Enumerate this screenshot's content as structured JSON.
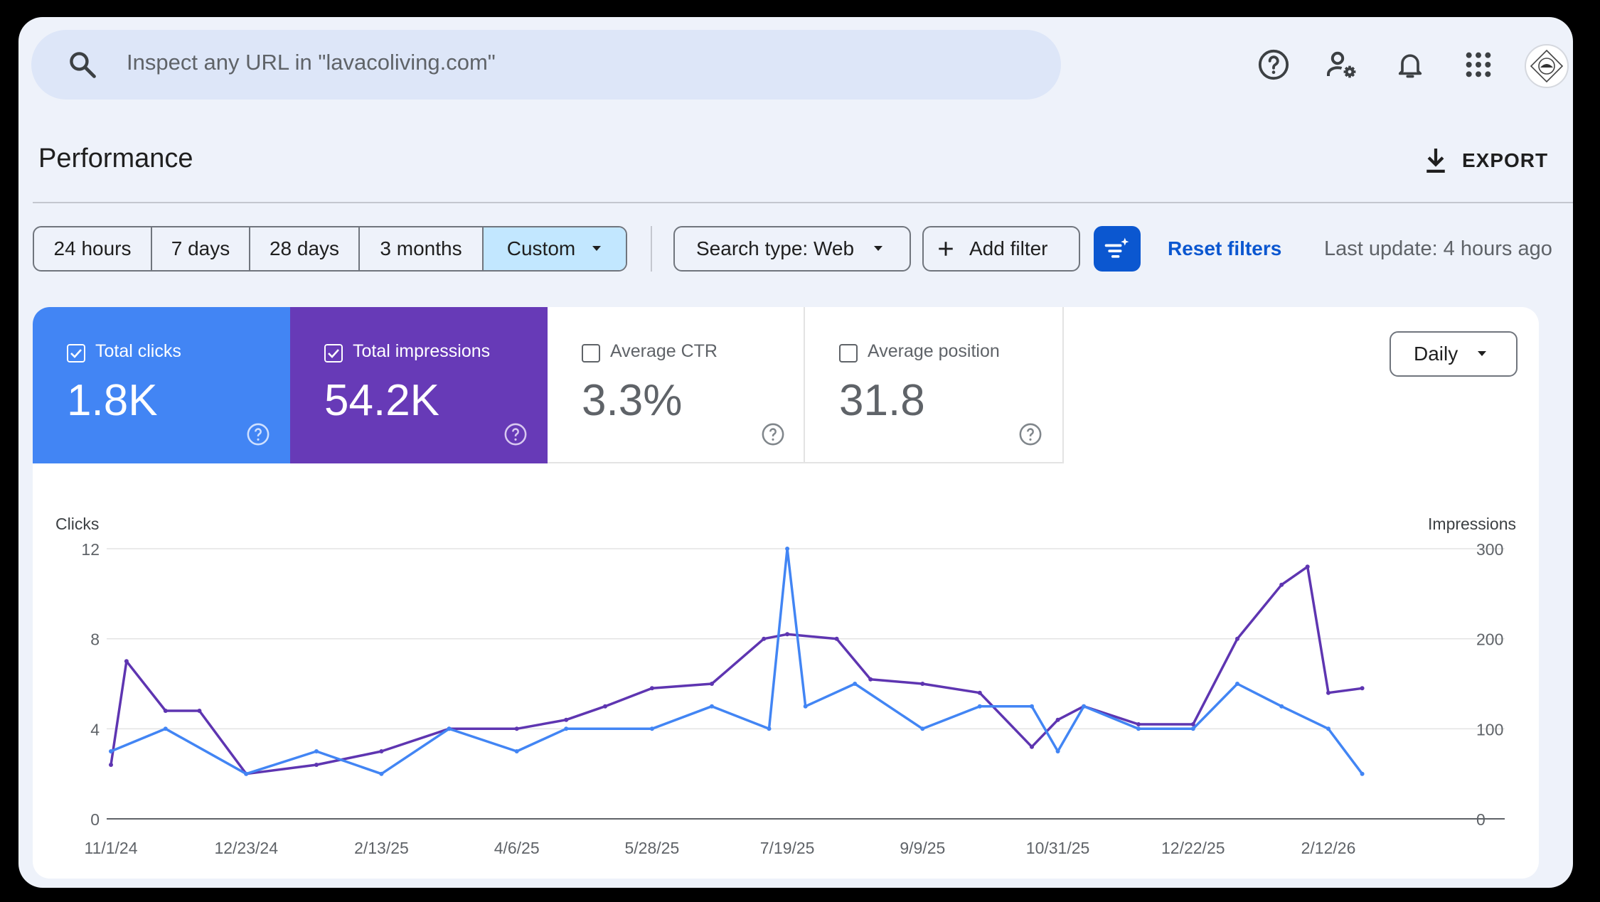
{
  "search": {
    "placeholder": "Inspect any URL in \"lavacoliving.com\""
  },
  "header_icons": [
    "help-icon",
    "account-settings-icon",
    "notifications-bell-icon",
    "apps-grid-icon",
    "profile-avatar"
  ],
  "page": {
    "title": "Performance",
    "export_label": "EXPORT"
  },
  "date_ranges": [
    {
      "label": "24 hours",
      "selected": false
    },
    {
      "label": "7 days",
      "selected": false
    },
    {
      "label": "28 days",
      "selected": false
    },
    {
      "label": "3 months",
      "selected": false
    },
    {
      "label": "Custom",
      "selected": true
    }
  ],
  "filters": {
    "search_type": "Search type: Web",
    "add_filter": "Add filter",
    "reset": "Reset filters",
    "last_update": "Last update: 4 hours ago"
  },
  "metrics": [
    {
      "label": "Total clicks",
      "value": "1.8K",
      "checked": true,
      "color": "#4285f4"
    },
    {
      "label": "Total impressions",
      "value": "54.2K",
      "checked": true,
      "color": "#673ab7"
    },
    {
      "label": "Average CTR",
      "value": "3.3%",
      "checked": false
    },
    {
      "label": "Average position",
      "value": "31.8",
      "checked": false
    }
  ],
  "granularity": "Daily",
  "colors": {
    "clicks": "#4285f4",
    "impressions": "#5e35b1",
    "accent": "#0b57d0",
    "custom_bg": "#c2e7ff"
  },
  "chart_data": {
    "type": "line",
    "ylabel_left": "Clicks",
    "ylabel_right": "Impressions",
    "y_left_ticks": [
      "12",
      "8",
      "4",
      "0"
    ],
    "y_right_ticks": [
      "300",
      "200",
      "100",
      "0"
    ],
    "ylim_left": [
      0,
      12
    ],
    "ylim_right": [
      0,
      300
    ],
    "x_ticks": [
      "11/1/24",
      "12/23/24",
      "2/13/25",
      "4/6/25",
      "5/28/25",
      "7/19/25",
      "9/9/25",
      "10/31/25",
      "12/22/25",
      "2/12/26"
    ],
    "grid": true,
    "series": [
      {
        "name": "Clicks",
        "axis": "left",
        "x": [
          "11/1/24",
          "11/22/24",
          "12/23/24",
          "1/19/25",
          "2/13/25",
          "3/11/25",
          "4/6/25",
          "4/25/25",
          "5/28/25",
          "6/20/25",
          "7/12/25",
          "7/19/25",
          "7/26/25",
          "8/14/25",
          "9/9/25",
          "10/1/25",
          "10/21/25",
          "10/31/25",
          "11/10/25",
          "12/1/25",
          "12/22/25",
          "1/8/26",
          "1/25/26",
          "2/12/26",
          "2/25/26"
        ],
        "values": [
          3,
          4,
          2,
          3,
          2,
          4,
          3,
          4,
          4,
          5,
          4,
          12,
          5,
          6,
          4,
          5,
          5,
          3,
          5,
          4,
          4,
          6,
          5,
          4,
          2
        ]
      },
      {
        "name": "Impressions",
        "axis": "right",
        "x": [
          "11/1/24",
          "11/7/24",
          "11/22/24",
          "12/5/24",
          "12/23/24",
          "1/19/25",
          "2/13/25",
          "3/11/25",
          "4/6/25",
          "4/25/25",
          "5/10/25",
          "5/28/25",
          "6/20/25",
          "7/10/25",
          "7/19/25",
          "8/7/25",
          "8/20/25",
          "9/9/25",
          "10/1/25",
          "10/21/25",
          "10/31/25",
          "11/10/25",
          "12/1/25",
          "12/22/25",
          "1/8/26",
          "1/25/26",
          "2/4/26",
          "2/12/26",
          "2/25/26"
        ],
        "values": [
          60,
          175,
          120,
          120,
          50,
          60,
          75,
          100,
          100,
          110,
          125,
          145,
          150,
          200,
          205,
          200,
          155,
          150,
          140,
          80,
          110,
          125,
          105,
          105,
          200,
          260,
          280,
          140,
          145
        ]
      }
    ]
  }
}
